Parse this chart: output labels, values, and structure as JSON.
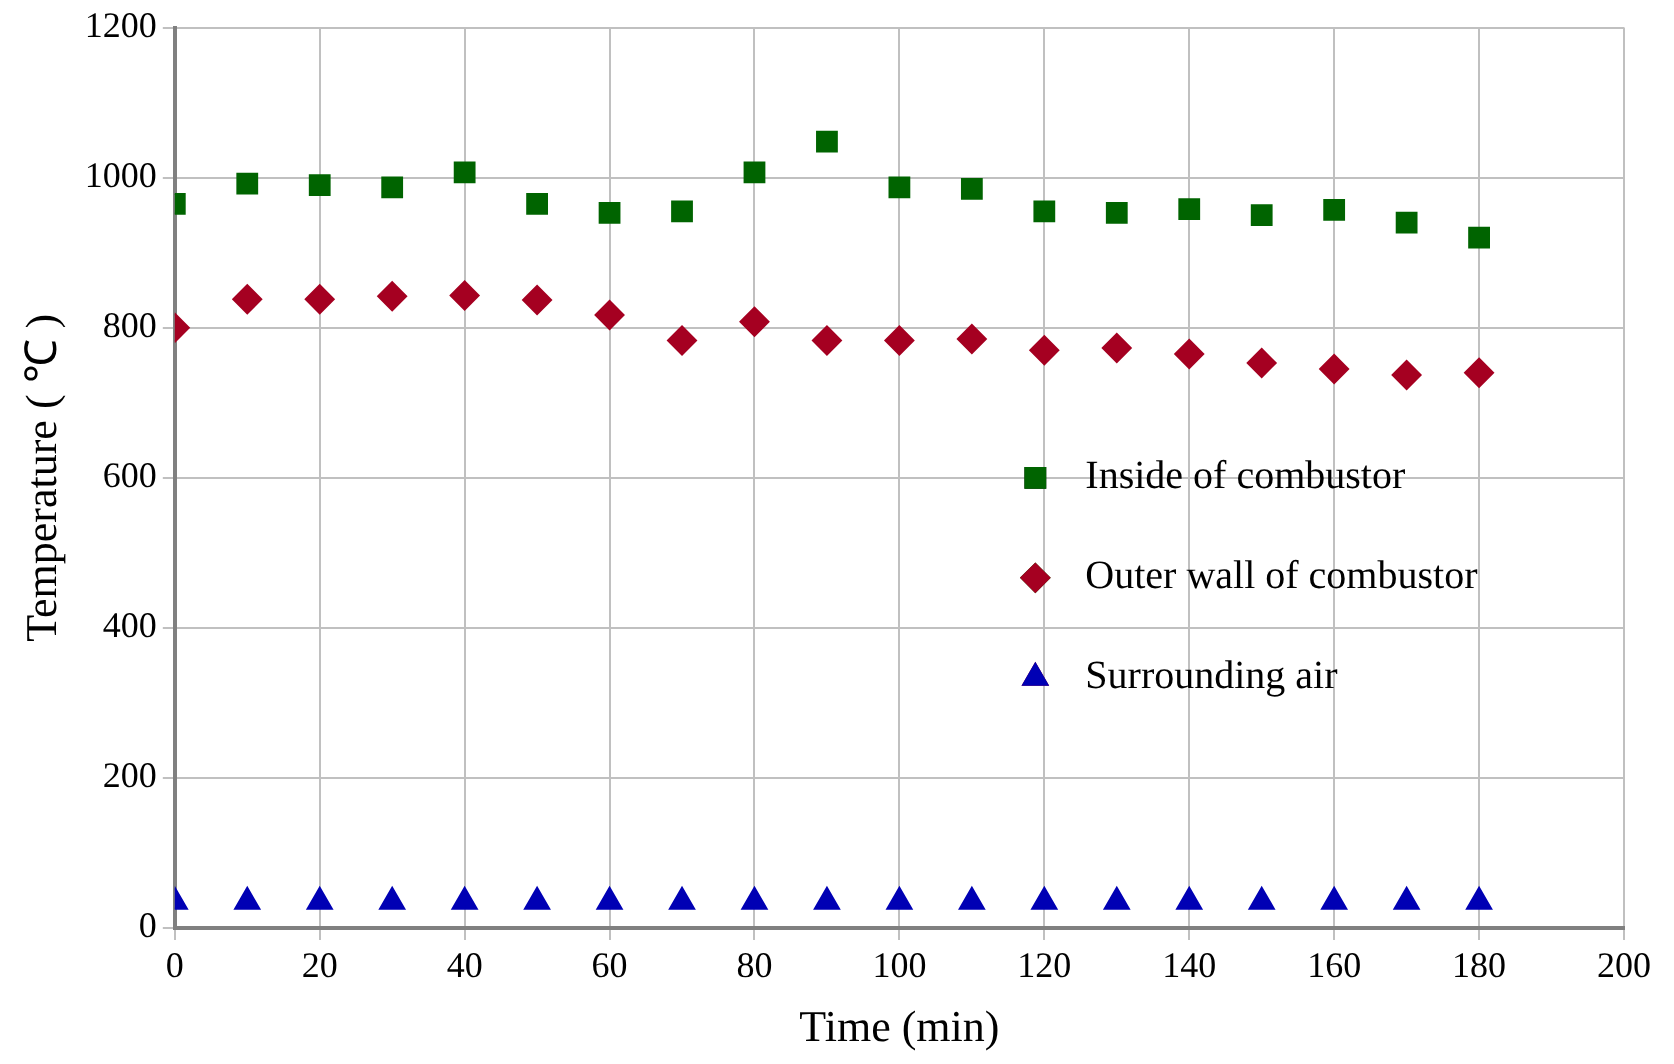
{
  "chart_data": {
    "type": "scatter",
    "xlabel": "Time (min)",
    "ylabel": "Temperature ( ℃ )",
    "x": [
      0,
      10,
      20,
      30,
      40,
      50,
      60,
      70,
      80,
      90,
      100,
      110,
      120,
      130,
      140,
      150,
      160,
      170,
      180
    ],
    "series": [
      {
        "name": "Inside of combustor",
        "color": "#006400",
        "marker": "square",
        "values": [
          965,
          992,
          990,
          987,
          1007,
          965,
          953,
          955,
          1007,
          1048,
          987,
          985,
          955,
          953,
          958,
          950,
          957,
          940,
          920
        ]
      },
      {
        "name": "Outer wall of combustor",
        "color": "#a50021",
        "marker": "diamond",
        "values": [
          800,
          838,
          838,
          842,
          843,
          837,
          817,
          783,
          808,
          783,
          783,
          785,
          770,
          773,
          765,
          753,
          745,
          737,
          740
        ]
      },
      {
        "name": "Surrounding air",
        "color": "#0000b4",
        "marker": "triangle",
        "values": [
          35,
          35,
          35,
          35,
          35,
          35,
          35,
          35,
          35,
          35,
          35,
          35,
          35,
          35,
          35,
          35,
          35,
          35,
          35
        ]
      }
    ],
    "xlim": [
      0,
      200
    ],
    "xticks": [
      0,
      20,
      40,
      60,
      80,
      100,
      120,
      140,
      160,
      180,
      200
    ],
    "ylim": [
      0,
      1200
    ],
    "yticks": [
      0,
      200,
      400,
      600,
      800,
      1000,
      1200
    ],
    "grid": true,
    "legend": "right"
  }
}
